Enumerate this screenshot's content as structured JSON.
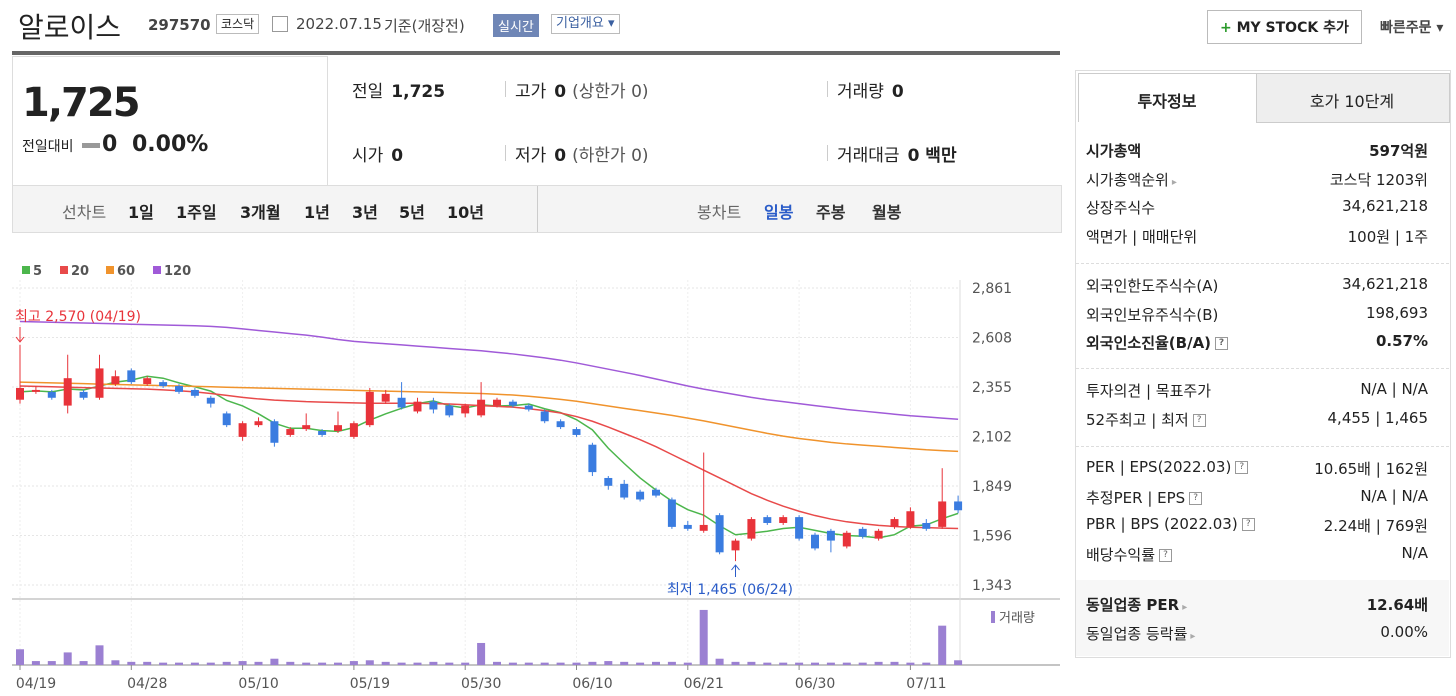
{
  "header": {
    "name": "알로이스",
    "code": "297570",
    "market": "코스닥",
    "date": "2022.07.15",
    "basis": "기준(개장전)",
    "realtime": "실시간",
    "company": "기업개요",
    "mystock": "MY STOCK 추가",
    "quick_order": "빠른주문"
  },
  "quote": {
    "price": "1,725",
    "change_label": "전일대비",
    "change": "0",
    "change_pct": "0.00%",
    "items": [
      {
        "label": "전일",
        "value": "1,725"
      },
      {
        "label": "고가",
        "value": "0",
        "note": "(상한가 0)"
      },
      {
        "label": "거래량",
        "value": "0"
      },
      {
        "label": "시가",
        "value": "0"
      },
      {
        "label": "저가",
        "value": "0",
        "note": "(하한가 0)"
      },
      {
        "label": "거래대금",
        "value": "0 백만"
      }
    ]
  },
  "tabs": {
    "line_label": "선차트",
    "line": [
      "1일",
      "1주일",
      "3개월",
      "1년",
      "3년",
      "5년",
      "10년"
    ],
    "candle_label": "봉차트",
    "candle": [
      "일봉",
      "주봉",
      "월봉"
    ],
    "active_candle": 0
  },
  "chart_data": {
    "type": "candlestick",
    "categories": [
      "04/19",
      null,
      null,
      null,
      null,
      null,
      null,
      "04/28",
      null,
      null,
      null,
      null,
      null,
      null,
      "05/10",
      null,
      null,
      null,
      null,
      null,
      null,
      "05/19",
      null,
      null,
      null,
      null,
      null,
      null,
      "05/30",
      null,
      null,
      null,
      null,
      null,
      null,
      "06/10",
      null,
      null,
      null,
      null,
      null,
      null,
      "06/21",
      null,
      null,
      null,
      null,
      null,
      null,
      "06/30",
      null,
      null,
      null,
      null,
      null,
      null,
      "07/11",
      null,
      null,
      null
    ],
    "open": [
      2290,
      2330,
      2330,
      2260,
      2330,
      2300,
      2370,
      2440,
      2370,
      2380,
      2360,
      2340,
      2300,
      2220,
      2100,
      2160,
      2180,
      2110,
      2140,
      2130,
      2130,
      2100,
      2160,
      2280,
      2300,
      2230,
      2280,
      2260,
      2220,
      2210,
      2260,
      2280,
      2260,
      2230,
      2180,
      2140,
      2060,
      1890,
      1860,
      1820,
      1830,
      1780,
      1650,
      1620,
      1700,
      1520,
      1580,
      1690,
      1660,
      1690,
      1600,
      1620,
      1540,
      1630,
      1580,
      1640,
      1640,
      1660,
      1640,
      1770
    ],
    "high": [
      2570,
      2360,
      2340,
      2520,
      2340,
      2520,
      2440,
      2450,
      2410,
      2390,
      2370,
      2350,
      2310,
      2230,
      2180,
      2200,
      2190,
      2150,
      2220,
      2140,
      2230,
      2180,
      2350,
      2340,
      2380,
      2300,
      2300,
      2270,
      2270,
      2380,
      2300,
      2290,
      2270,
      2240,
      2190,
      2150,
      2070,
      1900,
      1880,
      1830,
      1840,
      1790,
      1670,
      2020,
      1710,
      1580,
      1690,
      1700,
      1700,
      1700,
      1610,
      1630,
      1620,
      1640,
      1630,
      1690,
      1740,
      1680,
      1940,
      1800
    ],
    "low": [
      2270,
      2320,
      2290,
      2220,
      2290,
      2290,
      2360,
      2370,
      2360,
      2350,
      2320,
      2300,
      2250,
      2150,
      2080,
      2150,
      2050,
      2100,
      2130,
      2100,
      2120,
      2090,
      2150,
      2270,
      2240,
      2220,
      2220,
      2200,
      2200,
      2200,
      2250,
      2250,
      2230,
      2170,
      2140,
      2100,
      1900,
      1830,
      1780,
      1770,
      1790,
      1630,
      1620,
      1610,
      1500,
      1465,
      1570,
      1650,
      1650,
      1570,
      1520,
      1510,
      1530,
      1580,
      1570,
      1630,
      1630,
      1620,
      1630,
      1710
    ],
    "close": [
      2350,
      2340,
      2300,
      2400,
      2300,
      2450,
      2410,
      2380,
      2400,
      2360,
      2330,
      2310,
      2270,
      2160,
      2170,
      2180,
      2070,
      2140,
      2160,
      2110,
      2160,
      2170,
      2330,
      2320,
      2250,
      2280,
      2240,
      2210,
      2260,
      2290,
      2290,
      2260,
      2240,
      2180,
      2150,
      2110,
      1920,
      1850,
      1790,
      1780,
      1800,
      1640,
      1630,
      1650,
      1510,
      1570,
      1680,
      1660,
      1690,
      1580,
      1530,
      1570,
      1610,
      1590,
      1620,
      1680,
      1720,
      1630,
      1770,
      1725
    ],
    "up_color": "#e8333a",
    "down_color": "#3a7ce0",
    "ylim": [
      1343,
      2861
    ],
    "yticks": [
      {
        "value": 1343,
        "label": "1,343"
      },
      {
        "value": 1596,
        "label": "1,596"
      },
      {
        "value": 1849,
        "label": "1,849"
      },
      {
        "value": 2102,
        "label": "2,102"
      },
      {
        "value": 2355,
        "label": "2,355"
      },
      {
        "value": 2608,
        "label": "2,608"
      },
      {
        "value": 2861,
        "label": "2,861"
      }
    ],
    "grid": true,
    "series": [
      {
        "name": "5",
        "color": "#4cb64c",
        "values": [
          2330,
          2335,
          2330,
          2345,
          2340,
          2360,
          2380,
          2390,
          2410,
          2400,
          2376,
          2356,
          2334,
          2286,
          2258,
          2218,
          2170,
          2144,
          2144,
          2132,
          2128,
          2148,
          2186,
          2218,
          2246,
          2270,
          2284,
          2260,
          2248,
          2264,
          2258,
          2260,
          2268,
          2244,
          2224,
          2188,
          2136,
          2042,
          1964,
          1890,
          1828,
          1772,
          1728,
          1700,
          1646,
          1600,
          1608,
          1618,
          1632,
          1638,
          1622,
          1606,
          1596,
          1592,
          1584,
          1600,
          1644,
          1650,
          1682,
          1709
        ]
      },
      {
        "name": "20",
        "color": "#e84a4a",
        "values": [
          2360,
          2358,
          2356,
          2354,
          2352,
          2350,
          2348,
          2346,
          2344,
          2340,
          2336,
          2330,
          2322,
          2312,
          2302,
          2294,
          2288,
          2284,
          2280,
          2278,
          2276,
          2274,
          2272,
          2272,
          2272,
          2272,
          2270,
          2268,
          2264,
          2260,
          2256,
          2252,
          2244,
          2234,
          2222,
          2204,
          2180,
          2150,
          2118,
          2086,
          2050,
          2010,
          1970,
          1930,
          1890,
          1850,
          1810,
          1776,
          1746,
          1720,
          1698,
          1680,
          1666,
          1656,
          1648,
          1642,
          1638,
          1636,
          1634,
          1632
        ]
      },
      {
        "name": "60",
        "color": "#f0932c",
        "values": [
          2380,
          2378,
          2376,
          2374,
          2372,
          2370,
          2368,
          2366,
          2364,
          2362,
          2360,
          2358,
          2356,
          2354,
          2352,
          2350,
          2348,
          2346,
          2344,
          2342,
          2340,
          2338,
          2336,
          2334,
          2332,
          2330,
          2328,
          2326,
          2324,
          2322,
          2318,
          2314,
          2308,
          2300,
          2292,
          2282,
          2270,
          2258,
          2246,
          2234,
          2222,
          2210,
          2196,
          2182,
          2166,
          2150,
          2134,
          2118,
          2104,
          2092,
          2082,
          2072,
          2064,
          2058,
          2052,
          2046,
          2040,
          2034,
          2030,
          2026
        ]
      },
      {
        "name": "120",
        "color": "#a05ad8",
        "values": [
          2690,
          2688,
          2686,
          2684,
          2682,
          2680,
          2678,
          2676,
          2674,
          2672,
          2670,
          2668,
          2665,
          2660,
          2652,
          2644,
          2636,
          2628,
          2620,
          2610,
          2598,
          2588,
          2582,
          2576,
          2570,
          2564,
          2558,
          2552,
          2546,
          2540,
          2532,
          2524,
          2514,
          2504,
          2492,
          2478,
          2462,
          2446,
          2430,
          2414,
          2396,
          2378,
          2360,
          2344,
          2330,
          2316,
          2302,
          2290,
          2280,
          2270,
          2260,
          2250,
          2240,
          2232,
          2224,
          2216,
          2208,
          2202,
          2196,
          2190
        ]
      }
    ],
    "volume": {
      "name": "거래량",
      "color": "#9b80d2",
      "ylim": [
        0,
        75
      ],
      "values": [
        20,
        5,
        5,
        16,
        5,
        25,
        6,
        4,
        4,
        3,
        3,
        3,
        3,
        4,
        5,
        4,
        8,
        4,
        3,
        3,
        3,
        5,
        6,
        4,
        3,
        3,
        4,
        3,
        3,
        28,
        4,
        3,
        3,
        3,
        3,
        3,
        4,
        5,
        4,
        3,
        4,
        4,
        3,
        70,
        8,
        4,
        4,
        3,
        3,
        3,
        3,
        3,
        3,
        3,
        4,
        4,
        3,
        3,
        50,
        6
      ]
    },
    "annotations": {
      "high": "최고 2,570 (04/19)",
      "low": "최저 1,465 (06/24)"
    }
  },
  "info": {
    "tabs": [
      "투자정보",
      "호가 10단계"
    ],
    "groups": [
      [
        {
          "label": "시가총액",
          "value": "597억원",
          "bold": true
        },
        {
          "label": "시가총액순위",
          "value": "코스닥 1203위",
          "arrow": true
        },
        {
          "label": "상장주식수",
          "value": "34,621,218"
        },
        {
          "label": "액면가 | 매매단위",
          "value": "100원 | 1주"
        }
      ],
      [
        {
          "label": "외국인한도주식수(A)",
          "value": "34,621,218"
        },
        {
          "label": "외국인보유주식수(B)",
          "value": "198,693"
        },
        {
          "label": "외국인소진율(B/A)",
          "value": "0.57%",
          "bold": true,
          "help": true
        }
      ],
      [
        {
          "label": "투자의견 | 목표주가",
          "value": "N/A | N/A"
        },
        {
          "label": "52주최고 | 최저",
          "value": "4,455 | 1,465",
          "help": true
        }
      ],
      [
        {
          "label": "PER | EPS(2022.03)",
          "value": "10.65배 | 162원",
          "help": true
        },
        {
          "label": "추정PER | EPS",
          "value": "N/A | N/A",
          "help": true
        },
        {
          "label": "PBR | BPS (2022.03)",
          "value": "2.24배 | 769원",
          "help": true
        },
        {
          "label": "배당수익률",
          "value": "N/A",
          "help": true
        }
      ],
      [
        {
          "label": "동일업종 PER",
          "value": "12.64배",
          "bold": true,
          "arrow": true
        },
        {
          "label": "동일업종 등락률",
          "value": "0.00%",
          "arrow": true
        }
      ]
    ]
  }
}
